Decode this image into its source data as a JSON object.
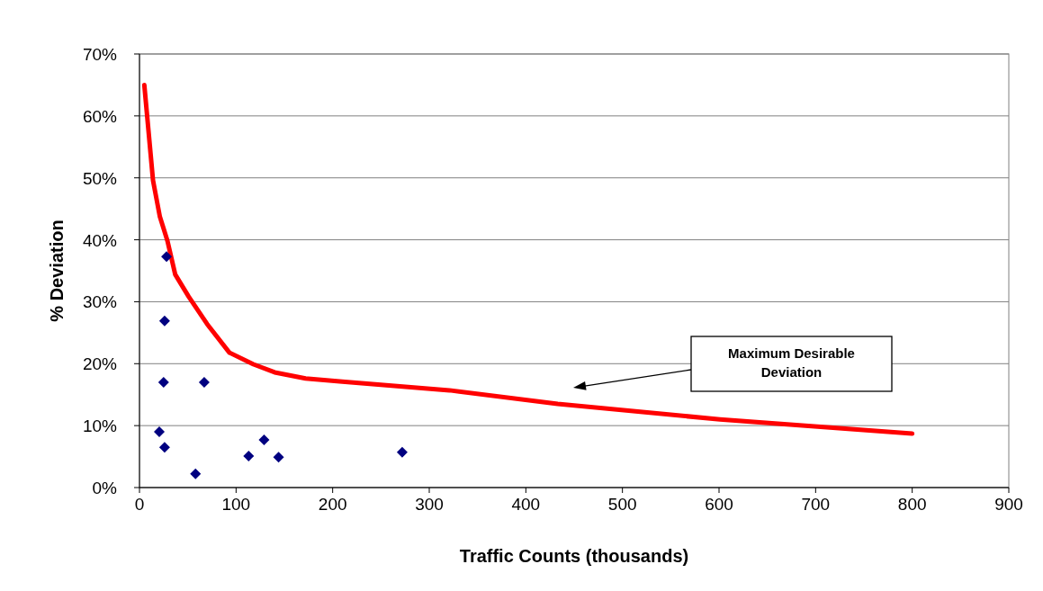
{
  "chart_data": {
    "type": "scatter",
    "xlabel": "Traffic Counts (thousands)",
    "ylabel": "% Deviation",
    "xlim": [
      0,
      900
    ],
    "xticks": [
      0,
      100,
      200,
      300,
      400,
      500,
      600,
      700,
      800,
      900
    ],
    "ylim": [
      0,
      70
    ],
    "yticks": [
      {
        "value": 0,
        "label": "0%"
      },
      {
        "value": 10,
        "label": "10%"
      },
      {
        "value": 20,
        "label": "20%"
      },
      {
        "value": 30,
        "label": "30%"
      },
      {
        "value": 40,
        "label": "40%"
      },
      {
        "value": 50,
        "label": "50%"
      },
      {
        "value": 60,
        "label": "60%"
      },
      {
        "value": 70,
        "label": "70%"
      }
    ],
    "grid": "y",
    "series": [
      {
        "type": "line",
        "color": "#ff0000",
        "marker": "none",
        "x": [
          5,
          14,
          21,
          29,
          37,
          51,
          70,
          93,
          118,
          140,
          172,
          210,
          321,
          433,
          601,
          800
        ],
        "values": [
          65,
          49.6,
          43.8,
          39.8,
          34.4,
          30.8,
          26.4,
          21.8,
          19.9,
          18.6,
          17.6,
          17.1,
          15.7,
          13.5,
          11,
          8.7
        ]
      },
      {
        "color": "#000080",
        "marker": "diamond",
        "x": [
          28,
          26,
          25,
          20.5,
          26,
          58,
          67,
          113,
          129,
          144,
          272
        ],
        "values": [
          37.3,
          26.9,
          17,
          9,
          6.5,
          2.2,
          17,
          5.1,
          7.7,
          4.9,
          5.7
        ]
      }
    ],
    "annotations": [
      "Maximum Desirable Deviation"
    ]
  }
}
